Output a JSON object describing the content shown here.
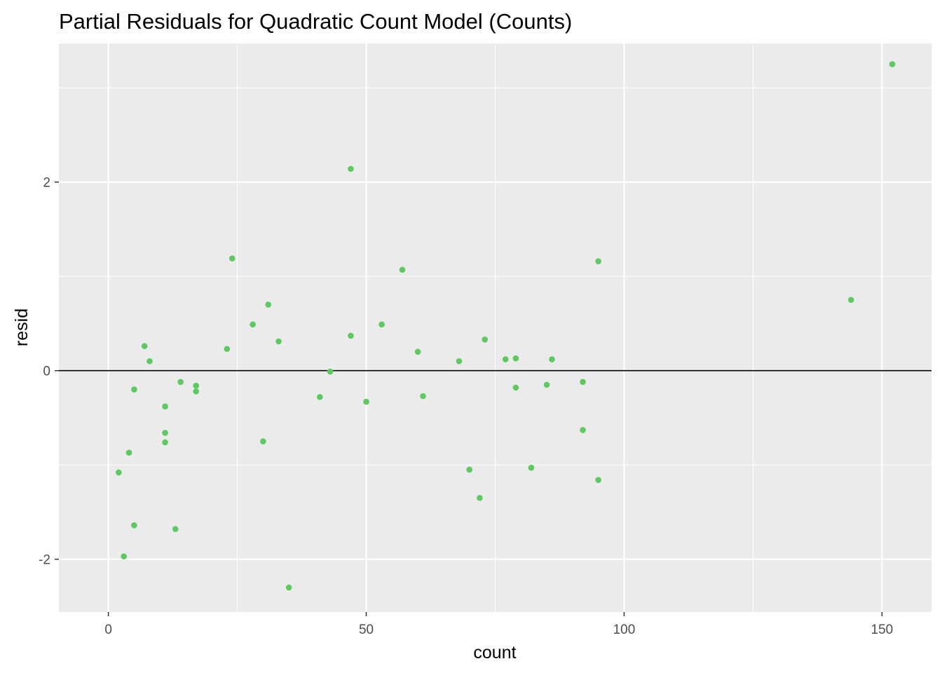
{
  "chart_data": {
    "type": "scatter",
    "title": "Partial Residuals for Quadratic Count Model (Counts)",
    "xlabel": "count",
    "ylabel": "resid",
    "xlim": [
      -9.6,
      159.6
    ],
    "ylim": [
      -2.56,
      3.47
    ],
    "x_ticks": [
      0,
      50,
      100,
      150
    ],
    "x_tick_labels": [
      "0",
      "50",
      "100",
      "150"
    ],
    "y_ticks": [
      -2,
      0,
      2
    ],
    "y_tick_labels": [
      "-2",
      "0",
      "2"
    ],
    "x_minor": [
      25,
      75,
      125
    ],
    "y_minor": [
      -1,
      1,
      3
    ],
    "reference_line_y": 0,
    "grid": true,
    "colors": {
      "panel": "#ebebeb",
      "grid": "#ffffff",
      "point": "#5ec962",
      "reference_line": "#000000"
    },
    "points": [
      {
        "x": 152,
        "y": 3.25
      },
      {
        "x": 47,
        "y": 2.14
      },
      {
        "x": 24,
        "y": 1.19
      },
      {
        "x": 95,
        "y": 1.16
      },
      {
        "x": 57,
        "y": 1.07
      },
      {
        "x": 144,
        "y": 0.75
      },
      {
        "x": 31,
        "y": 0.7
      },
      {
        "x": 28,
        "y": 0.49
      },
      {
        "x": 53,
        "y": 0.49
      },
      {
        "x": 47,
        "y": 0.37
      },
      {
        "x": 73,
        "y": 0.33
      },
      {
        "x": 33,
        "y": 0.31
      },
      {
        "x": 7,
        "y": 0.26
      },
      {
        "x": 23,
        "y": 0.23
      },
      {
        "x": 60,
        "y": 0.2
      },
      {
        "x": 79,
        "y": 0.13
      },
      {
        "x": 77,
        "y": 0.12
      },
      {
        "x": 86,
        "y": 0.12
      },
      {
        "x": 8,
        "y": 0.1
      },
      {
        "x": 68,
        "y": 0.1
      },
      {
        "x": 43,
        "y": -0.01
      },
      {
        "x": 14,
        "y": -0.12
      },
      {
        "x": 92,
        "y": -0.12
      },
      {
        "x": 85,
        "y": -0.15
      },
      {
        "x": 17,
        "y": -0.16
      },
      {
        "x": 79,
        "y": -0.18
      },
      {
        "x": 5,
        "y": -0.2
      },
      {
        "x": 17,
        "y": -0.22
      },
      {
        "x": 61,
        "y": -0.27
      },
      {
        "x": 41,
        "y": -0.28
      },
      {
        "x": 50,
        "y": -0.33
      },
      {
        "x": 11,
        "y": -0.38
      },
      {
        "x": 92,
        "y": -0.63
      },
      {
        "x": 11,
        "y": -0.66
      },
      {
        "x": 30,
        "y": -0.75
      },
      {
        "x": 11,
        "y": -0.76
      },
      {
        "x": 4,
        "y": -0.87
      },
      {
        "x": 82,
        "y": -1.03
      },
      {
        "x": 70,
        "y": -1.05
      },
      {
        "x": 2,
        "y": -1.08
      },
      {
        "x": 95,
        "y": -1.16
      },
      {
        "x": 72,
        "y": -1.35
      },
      {
        "x": 5,
        "y": -1.64
      },
      {
        "x": 13,
        "y": -1.68
      },
      {
        "x": 3,
        "y": -1.97
      },
      {
        "x": 35,
        "y": -2.3
      }
    ]
  }
}
